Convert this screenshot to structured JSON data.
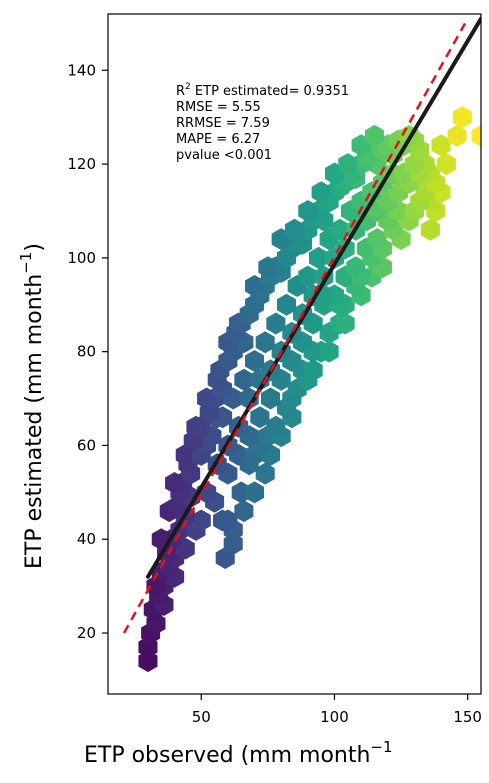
{
  "chart_data": {
    "type": "scatter",
    "style": "hexbin",
    "colormap": "viridis",
    "xlabel": "ETP observed (mm month",
    "xlabel_sup": "−1",
    "ylabel": "ETP estimated (mm month",
    "ylabel_sup": "−1",
    "ylabel_suffix": ")",
    "xlim": [
      15,
      155
    ],
    "ylim": [
      7,
      152
    ],
    "xticks": [
      50,
      100,
      150
    ],
    "yticks": [
      20,
      40,
      60,
      80,
      100,
      120,
      140
    ],
    "annotations": {
      "r2_prefix": "R",
      "r2_sup": "2",
      "r2_text": " ETP estimated= 0.9351",
      "rmse": "RMSE = 5.55",
      "rrmse": "RRMSE = 7.59",
      "mape": "MAPE = 6.27",
      "pvalue": "pvalue <0.001"
    },
    "regression_line": {
      "color": "#1a1a1a",
      "x": [
        30,
        155
      ],
      "y": [
        32,
        151
      ]
    },
    "one_to_one_line": {
      "color": "#e8101a",
      "style": "dashed",
      "x": [
        21,
        149
      ],
      "y": [
        20,
        150
      ]
    },
    "points": [
      [
        30,
        14
      ],
      [
        30,
        17
      ],
      [
        31,
        20
      ],
      [
        33,
        22
      ],
      [
        32,
        25
      ],
      [
        34,
        28
      ],
      [
        36,
        30
      ],
      [
        35,
        33
      ],
      [
        38,
        34
      ],
      [
        37,
        37
      ],
      [
        40,
        36
      ],
      [
        39,
        40
      ],
      [
        42,
        42
      ],
      [
        44,
        45
      ],
      [
        41,
        47
      ],
      [
        46,
        49
      ],
      [
        43,
        52
      ],
      [
        45,
        56
      ],
      [
        48,
        58
      ],
      [
        47,
        61
      ],
      [
        52,
        60
      ],
      [
        50,
        64
      ],
      [
        53,
        67
      ],
      [
        56,
        66
      ],
      [
        55,
        70
      ],
      [
        58,
        72
      ],
      [
        57,
        76
      ],
      [
        60,
        78
      ],
      [
        62,
        80
      ],
      [
        63,
        84
      ],
      [
        66,
        82
      ],
      [
        65,
        86
      ],
      [
        68,
        88
      ],
      [
        70,
        90
      ],
      [
        72,
        92
      ],
      [
        74,
        94
      ],
      [
        76,
        96
      ],
      [
        78,
        98
      ],
      [
        80,
        97
      ],
      [
        82,
        100
      ],
      [
        84,
        102
      ],
      [
        86,
        104
      ],
      [
        88,
        103
      ],
      [
        90,
        106
      ],
      [
        92,
        108
      ],
      [
        94,
        110
      ],
      [
        96,
        108
      ],
      [
        98,
        112
      ],
      [
        100,
        114
      ],
      [
        102,
        115
      ],
      [
        104,
        116
      ],
      [
        106,
        118
      ],
      [
        108,
        117
      ],
      [
        110,
        120
      ],
      [
        112,
        121
      ],
      [
        114,
        122
      ],
      [
        116,
        120
      ],
      [
        118,
        123
      ],
      [
        120,
        124
      ],
      [
        122,
        122
      ],
      [
        124,
        125
      ],
      [
        126,
        124
      ],
      [
        128,
        126
      ],
      [
        130,
        125
      ],
      [
        132,
        123
      ],
      [
        134,
        120
      ],
      [
        136,
        118
      ],
      [
        138,
        116
      ],
      [
        140,
        124
      ],
      [
        142,
        120
      ],
      [
        146,
        126
      ],
      [
        148,
        130
      ],
      [
        155,
        126
      ],
      [
        50,
        44
      ],
      [
        55,
        48
      ],
      [
        60,
        54
      ],
      [
        64,
        58
      ],
      [
        68,
        62
      ],
      [
        72,
        66
      ],
      [
        76,
        70
      ],
      [
        80,
        74
      ],
      [
        84,
        78
      ],
      [
        88,
        82
      ],
      [
        92,
        86
      ],
      [
        96,
        90
      ],
      [
        100,
        92
      ],
      [
        104,
        96
      ],
      [
        108,
        98
      ],
      [
        112,
        102
      ],
      [
        116,
        104
      ],
      [
        120,
        108
      ],
      [
        124,
        110
      ],
      [
        59,
        36
      ],
      [
        62,
        39
      ],
      [
        58,
        44
      ],
      [
        70,
        58
      ],
      [
        75,
        62
      ],
      [
        82,
        68
      ],
      [
        86,
        72
      ],
      [
        90,
        74
      ],
      [
        95,
        80
      ],
      [
        102,
        86
      ],
      [
        110,
        92
      ],
      [
        118,
        98
      ],
      [
        125,
        104
      ],
      [
        130,
        110
      ],
      [
        136,
        112
      ],
      [
        140,
        114
      ],
      [
        40,
        52
      ],
      [
        44,
        58
      ],
      [
        48,
        64
      ],
      [
        52,
        70
      ],
      [
        56,
        74
      ],
      [
        60,
        82
      ],
      [
        64,
        86
      ],
      [
        70,
        94
      ],
      [
        75,
        98
      ],
      [
        80,
        104
      ],
      [
        85,
        106
      ],
      [
        90,
        110
      ],
      [
        95,
        114
      ],
      [
        100,
        118
      ],
      [
        105,
        120
      ],
      [
        110,
        124
      ],
      [
        115,
        126
      ],
      [
        35,
        40
      ],
      [
        38,
        46
      ],
      [
        42,
        50
      ],
      [
        46,
        54
      ],
      [
        50,
        58
      ],
      [
        54,
        62
      ],
      [
        58,
        66
      ],
      [
        62,
        70
      ],
      [
        66,
        74
      ],
      [
        70,
        78
      ],
      [
        74,
        82
      ],
      [
        78,
        86
      ],
      [
        82,
        90
      ],
      [
        86,
        94
      ],
      [
        90,
        96
      ],
      [
        94,
        100
      ],
      [
        98,
        104
      ],
      [
        102,
        106
      ],
      [
        106,
        110
      ],
      [
        110,
        112
      ],
      [
        114,
        114
      ],
      [
        118,
        116
      ],
      [
        122,
        118
      ],
      [
        126,
        118
      ],
      [
        130,
        120
      ],
      [
        134,
        114
      ],
      [
        138,
        110
      ],
      [
        33,
        30
      ],
      [
        36,
        26
      ],
      [
        40,
        32
      ],
      [
        44,
        38
      ],
      [
        48,
        42
      ],
      [
        52,
        50
      ],
      [
        56,
        56
      ],
      [
        60,
        60
      ],
      [
        64,
        64
      ],
      [
        68,
        70
      ],
      [
        72,
        74
      ],
      [
        76,
        76
      ],
      [
        80,
        80
      ],
      [
        84,
        84
      ],
      [
        88,
        88
      ],
      [
        92,
        92
      ],
      [
        96,
        96
      ],
      [
        100,
        100
      ],
      [
        104,
        102
      ],
      [
        108,
        106
      ],
      [
        112,
        108
      ],
      [
        116,
        110
      ],
      [
        120,
        112
      ],
      [
        124,
        114
      ],
      [
        128,
        116
      ],
      [
        132,
        118
      ],
      [
        60,
        44
      ],
      [
        65,
        50
      ],
      [
        68,
        56
      ],
      [
        72,
        60
      ],
      [
        78,
        64
      ],
      [
        84,
        70
      ],
      [
        88,
        76
      ],
      [
        92,
        80
      ],
      [
        98,
        84
      ],
      [
        104,
        90
      ],
      [
        108,
        94
      ],
      [
        114,
        96
      ],
      [
        118,
        102
      ],
      [
        122,
        106
      ],
      [
        128,
        108
      ],
      [
        132,
        112
      ],
      [
        136,
        106
      ],
      [
        96,
        92
      ],
      [
        102,
        90
      ],
      [
        110,
        96
      ],
      [
        114,
        100
      ],
      [
        104,
        86
      ],
      [
        98,
        80
      ],
      [
        92,
        76
      ],
      [
        84,
        66
      ],
      [
        80,
        62
      ],
      [
        76,
        58
      ],
      [
        74,
        54
      ],
      [
        70,
        50
      ],
      [
        66,
        46
      ],
      [
        62,
        42
      ]
    ]
  }
}
